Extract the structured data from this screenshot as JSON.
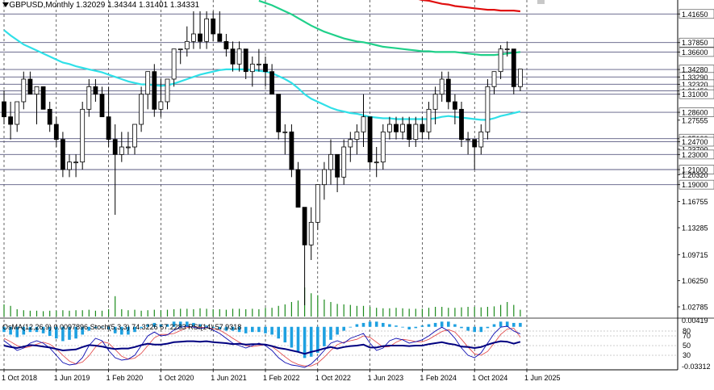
{
  "header": {
    "symbol_line": "GBPUSD,Monthly  1.32029 1.34344 1.31401 1.34331",
    "indicator_line": "OsMA(12,26,9) 0.0097896  Stoch(5,3,3) 74.3226 67.2283  RSI(14) 57.9318"
  },
  "colors": {
    "bull": "#000000",
    "bear": "#000000",
    "ema200": "#e01010",
    "ema144": "#20d08a",
    "ema50": "#30e0e8",
    "volume": "#1b8a1b",
    "osma": "#1ea0e0",
    "stoch_main": "#0a0ab0",
    "stoch_signal": "#e04040",
    "rsi": "#000080",
    "level_line": "#5a5a80"
  },
  "chart_data": {
    "type": "candlestick",
    "title": "GBPUSD,Monthly",
    "ohlc_line": "1.32029 1.34344 1.31401 1.34331",
    "price_axis": {
      "ylim": [
        1.015,
        1.435
      ],
      "ticks": [
        "1.41650",
        "1.37850",
        "1.36600",
        "1.34280",
        "1.33290",
        "1.32320",
        "1.31450",
        "1.31000",
        "1.28600",
        "1.27555",
        "1.25100",
        "1.24700",
        "1.23700",
        "1.23000",
        "1.21000",
        "1.20320",
        "1.19000",
        "1.16755",
        "1.13285",
        "1.09715",
        "1.06250",
        "1.02785"
      ],
      "tick_values": [
        1.4165,
        1.3785,
        1.366,
        1.3428,
        1.3329,
        1.3232,
        1.3145,
        1.31,
        1.286,
        1.27555,
        1.251,
        1.247,
        1.237,
        1.23,
        1.21,
        1.2032,
        1.19,
        1.16755,
        1.13285,
        1.09715,
        1.0625,
        1.02785
      ]
    },
    "levels": [
      1.4165,
      1.3785,
      1.366,
      1.3428,
      1.3329,
      1.3232,
      1.3145,
      1.31,
      1.286,
      1.251,
      1.247,
      1.23,
      1.21,
      1.19
    ],
    "x_labels": [
      "1 Oct 2018",
      "1 Jun 2019",
      "1 Feb 2020",
      "1 Oct 2020",
      "1 Jun 2021",
      "1 Feb 2022",
      "1 Oct 2022",
      "1 Jun 2023",
      "1 Feb 2024",
      "1 Oct 2024",
      "1 Jun 2025"
    ],
    "x_label_index": [
      0,
      8,
      16,
      24,
      32,
      40,
      48,
      56,
      64,
      72,
      80
    ],
    "candles": [
      [
        1.3,
        1.315,
        1.27,
        1.28
      ],
      [
        1.28,
        1.3,
        1.25,
        1.27
      ],
      [
        1.27,
        1.3,
        1.26,
        1.3
      ],
      [
        1.3,
        1.34,
        1.29,
        1.33
      ],
      [
        1.33,
        1.34,
        1.31,
        1.31
      ],
      [
        1.31,
        1.32,
        1.27,
        1.32
      ],
      [
        1.32,
        1.32,
        1.29,
        1.29
      ],
      [
        1.29,
        1.3,
        1.26,
        1.27
      ],
      [
        1.27,
        1.28,
        1.24,
        1.25
      ],
      [
        1.25,
        1.26,
        1.2,
        1.21
      ],
      [
        1.21,
        1.23,
        1.2,
        1.22
      ],
      [
        1.22,
        1.23,
        1.2,
        1.22
      ],
      [
        1.22,
        1.3,
        1.21,
        1.29
      ],
      [
        1.29,
        1.33,
        1.28,
        1.32
      ],
      [
        1.32,
        1.33,
        1.3,
        1.31
      ],
      [
        1.31,
        1.32,
        1.28,
        1.28
      ],
      [
        1.28,
        1.32,
        1.24,
        1.25
      ],
      [
        1.25,
        1.27,
        1.15,
        1.23
      ],
      [
        1.23,
        1.26,
        1.22,
        1.24
      ],
      [
        1.24,
        1.26,
        1.23,
        1.24
      ],
      [
        1.24,
        1.27,
        1.23,
        1.27
      ],
      [
        1.27,
        1.32,
        1.26,
        1.31
      ],
      [
        1.31,
        1.34,
        1.29,
        1.34
      ],
      [
        1.34,
        1.35,
        1.28,
        1.29
      ],
      [
        1.29,
        1.33,
        1.28,
        1.3
      ],
      [
        1.3,
        1.33,
        1.29,
        1.33
      ],
      [
        1.33,
        1.37,
        1.32,
        1.37
      ],
      [
        1.37,
        1.37,
        1.35,
        1.37
      ],
      [
        1.37,
        1.4,
        1.36,
        1.38
      ],
      [
        1.38,
        1.42,
        1.37,
        1.39
      ],
      [
        1.39,
        1.42,
        1.37,
        1.38
      ],
      [
        1.38,
        1.42,
        1.37,
        1.41
      ],
      [
        1.41,
        1.42,
        1.38,
        1.39
      ],
      [
        1.39,
        1.42,
        1.38,
        1.38
      ],
      [
        1.38,
        1.39,
        1.36,
        1.37
      ],
      [
        1.37,
        1.38,
        1.34,
        1.35
      ],
      [
        1.35,
        1.38,
        1.34,
        1.37
      ],
      [
        1.37,
        1.37,
        1.33,
        1.34
      ],
      [
        1.34,
        1.36,
        1.32,
        1.35
      ],
      [
        1.35,
        1.37,
        1.34,
        1.35
      ],
      [
        1.35,
        1.36,
        1.32,
        1.34
      ],
      [
        1.34,
        1.35,
        1.31,
        1.31
      ],
      [
        1.31,
        1.31,
        1.25,
        1.26
      ],
      [
        1.26,
        1.27,
        1.23,
        1.26
      ],
      [
        1.26,
        1.27,
        1.2,
        1.21
      ],
      [
        1.21,
        1.22,
        1.16,
        1.16
      ],
      [
        1.16,
        1.16,
        1.03,
        1.11
      ],
      [
        1.11,
        1.16,
        1.09,
        1.14
      ],
      [
        1.14,
        1.19,
        1.13,
        1.19
      ],
      [
        1.19,
        1.22,
        1.17,
        1.21
      ],
      [
        1.21,
        1.25,
        1.19,
        1.23
      ],
      [
        1.23,
        1.23,
        1.18,
        1.2
      ],
      [
        1.2,
        1.25,
        1.19,
        1.24
      ],
      [
        1.24,
        1.26,
        1.22,
        1.25
      ],
      [
        1.25,
        1.27,
        1.23,
        1.26
      ],
      [
        1.26,
        1.31,
        1.24,
        1.28
      ],
      [
        1.28,
        1.28,
        1.21,
        1.22
      ],
      [
        1.22,
        1.24,
        1.2,
        1.22
      ],
      [
        1.22,
        1.27,
        1.21,
        1.26
      ],
      [
        1.26,
        1.28,
        1.25,
        1.27
      ],
      [
        1.27,
        1.28,
        1.25,
        1.26
      ],
      [
        1.26,
        1.28,
        1.25,
        1.27
      ],
      [
        1.27,
        1.28,
        1.24,
        1.25
      ],
      [
        1.25,
        1.28,
        1.24,
        1.27
      ],
      [
        1.27,
        1.28,
        1.25,
        1.26
      ],
      [
        1.26,
        1.3,
        1.25,
        1.29
      ],
      [
        1.29,
        1.32,
        1.27,
        1.31
      ],
      [
        1.31,
        1.34,
        1.3,
        1.33
      ],
      [
        1.33,
        1.34,
        1.29,
        1.3
      ],
      [
        1.3,
        1.31,
        1.27,
        1.29
      ],
      [
        1.29,
        1.3,
        1.24,
        1.25
      ],
      [
        1.25,
        1.26,
        1.23,
        1.25
      ],
      [
        1.25,
        1.25,
        1.21,
        1.24
      ],
      [
        1.24,
        1.27,
        1.23,
        1.26
      ],
      [
        1.26,
        1.33,
        1.25,
        1.32
      ],
      [
        1.32,
        1.34,
        1.31,
        1.34
      ],
      [
        1.34,
        1.375,
        1.33,
        1.37
      ],
      [
        1.37,
        1.38,
        1.36,
        1.37
      ],
      [
        1.37,
        1.37,
        1.31,
        1.32
      ],
      [
        1.32,
        1.34344,
        1.31401,
        1.34331
      ]
    ],
    "ema50": [
      1.395,
      1.388,
      1.382,
      1.376,
      1.372,
      1.368,
      1.364,
      1.36,
      1.356,
      1.352,
      1.35,
      1.347,
      1.345,
      1.343,
      1.341,
      1.339,
      1.336,
      1.333,
      1.33,
      1.327,
      1.325,
      1.323,
      1.323,
      1.322,
      1.321,
      1.322,
      1.324,
      1.327,
      1.33,
      1.333,
      1.336,
      1.338,
      1.34,
      1.342,
      1.343,
      1.343,
      1.343,
      1.343,
      1.342,
      1.341,
      1.34,
      1.338,
      1.334,
      1.33,
      1.325,
      1.318,
      1.31,
      1.304,
      1.3,
      1.296,
      1.292,
      1.289,
      1.287,
      1.285,
      1.284,
      1.282,
      1.28,
      1.279,
      1.278,
      1.278,
      1.277,
      1.277,
      1.277,
      1.277,
      1.277,
      1.277,
      1.278,
      1.28,
      1.281,
      1.28,
      1.279,
      1.278,
      1.277,
      1.276,
      1.276,
      1.278,
      1.281,
      1.283,
      1.285,
      1.287
    ],
    "ema144": [
      null,
      null,
      null,
      null,
      null,
      null,
      null,
      null,
      null,
      null,
      null,
      null,
      null,
      null,
      null,
      null,
      null,
      null,
      null,
      null,
      null,
      null,
      null,
      null,
      null,
      null,
      null,
      null,
      null,
      null,
      null,
      null,
      null,
      null,
      null,
      null,
      null,
      null,
      null,
      1.434,
      1.431,
      1.428,
      1.424,
      1.42,
      1.416,
      1.411,
      1.406,
      1.401,
      1.397,
      1.393,
      1.39,
      1.387,
      1.384,
      1.382,
      1.38,
      1.379,
      1.377,
      1.375,
      1.373,
      1.372,
      1.371,
      1.37,
      1.369,
      1.368,
      1.367,
      1.367,
      1.366,
      1.366,
      1.366,
      1.366,
      1.365,
      1.364,
      1.363,
      1.362,
      1.362,
      1.362,
      1.363,
      1.364,
      1.365,
      1.366
    ],
    "ema200": [
      null,
      null,
      null,
      null,
      null,
      null,
      null,
      null,
      null,
      null,
      null,
      null,
      null,
      null,
      null,
      null,
      null,
      null,
      null,
      null,
      null,
      null,
      null,
      null,
      null,
      null,
      null,
      null,
      null,
      null,
      null,
      null,
      null,
      null,
      null,
      null,
      null,
      null,
      null,
      null,
      null,
      null,
      null,
      null,
      null,
      null,
      null,
      null,
      null,
      null,
      null,
      null,
      null,
      null,
      null,
      null,
      null,
      null,
      null,
      null,
      null,
      null,
      1.439,
      1.437,
      1.435,
      1.434,
      1.432,
      1.43,
      1.429,
      1.427,
      1.426,
      1.425,
      1.424,
      1.423,
      1.422,
      1.422,
      1.421,
      1.421,
      1.421,
      1.42
    ],
    "volume": [
      0.25,
      0.22,
      0.15,
      0.13,
      0.12,
      0.12,
      0.11,
      0.12,
      0.12,
      0.13,
      0.12,
      0.13,
      0.13,
      0.14,
      0.12,
      0.12,
      0.15,
      0.42,
      0.15,
      0.13,
      0.14,
      0.12,
      0.13,
      0.14,
      0.13,
      0.14,
      0.15,
      0.16,
      0.16,
      0.15,
      0.17,
      0.16,
      0.15,
      0.15,
      0.14,
      0.16,
      0.16,
      0.15,
      0.16,
      0.15,
      0.18,
      0.18,
      0.22,
      0.25,
      0.3,
      0.33,
      0.6,
      0.48,
      0.44,
      0.35,
      0.3,
      0.26,
      0.25,
      0.24,
      0.22,
      0.22,
      0.2,
      0.18,
      0.17,
      0.17,
      0.18,
      0.17,
      0.16,
      0.16,
      0.16,
      0.18,
      0.2,
      0.2,
      0.18,
      0.18,
      0.19,
      0.2,
      0.2,
      0.19,
      0.2,
      0.21,
      0.24,
      0.3,
      0.24,
      0.14
    ],
    "indicator": {
      "levels": [
        "80",
        "70",
        "50",
        "30"
      ],
      "axis_values": [
        "0.00419",
        "-0.03312"
      ],
      "axis_ylim": [
        -0.0331,
        0.0042
      ],
      "osma": [
        -0.004,
        -0.006,
        -0.008,
        -0.006,
        -0.004,
        -0.004,
        -0.005,
        -0.007,
        -0.009,
        -0.011,
        -0.01,
        -0.009,
        -0.006,
        -0.003,
        -0.001,
        0.0,
        -0.002,
        -0.005,
        -0.006,
        -0.006,
        -0.004,
        -0.001,
        0.002,
        0.003,
        0.002,
        0.002,
        0.004,
        0.004,
        0.004,
        0.003,
        0.002,
        0.001,
        -0.001,
        -0.002,
        -0.003,
        -0.003,
        -0.004,
        -0.005,
        -0.004,
        -0.004,
        -0.005,
        -0.006,
        -0.009,
        -0.012,
        -0.016,
        -0.019,
        -0.024,
        -0.023,
        -0.02,
        -0.015,
        -0.01,
        -0.006,
        -0.003,
        0.0,
        0.002,
        0.003,
        0.004,
        0.004,
        0.003,
        0.002,
        0.001,
        0.0,
        -0.002,
        -0.001,
        0.001,
        0.002,
        0.003,
        0.004,
        0.004,
        0.002,
        -0.001,
        -0.003,
        -0.004,
        -0.004,
        -0.001,
        0.002,
        0.004,
        0.004,
        0.003,
        0.003
      ],
      "stoch_main": [
        60,
        50,
        40,
        45,
        55,
        60,
        55,
        45,
        30,
        15,
        10,
        12,
        25,
        50,
        65,
        60,
        40,
        25,
        20,
        22,
        30,
        50,
        70,
        78,
        70,
        72,
        82,
        88,
        90,
        88,
        85,
        88,
        82,
        75,
        65,
        55,
        50,
        45,
        50,
        55,
        50,
        40,
        25,
        15,
        10,
        8,
        5,
        12,
        25,
        40,
        55,
        60,
        55,
        65,
        70,
        75,
        55,
        40,
        45,
        60,
        65,
        62,
        55,
        58,
        62,
        70,
        80,
        88,
        80,
        65,
        45,
        30,
        25,
        35,
        55,
        75,
        88,
        90,
        80,
        74.3
      ],
      "stoch_signal": [
        65,
        58,
        50,
        45,
        48,
        53,
        57,
        53,
        43,
        30,
        18,
        12,
        16,
        29,
        47,
        58,
        55,
        42,
        28,
        22,
        24,
        34,
        50,
        66,
        73,
        73,
        75,
        81,
        87,
        89,
        88,
        87,
        85,
        82,
        74,
        65,
        57,
        50,
        48,
        50,
        52,
        48,
        38,
        27,
        17,
        11,
        8,
        8,
        14,
        26,
        40,
        52,
        57,
        60,
        63,
        70,
        67,
        57,
        47,
        48,
        57,
        63,
        61,
        58,
        58,
        63,
        71,
        79,
        83,
        78,
        63,
        47,
        33,
        30,
        38,
        55,
        73,
        84,
        86,
        67.2
      ],
      "rsi": [
        50,
        47,
        45,
        48,
        51,
        50,
        48,
        46,
        43,
        40,
        41,
        42,
        47,
        51,
        50,
        48,
        45,
        43,
        44,
        44,
        47,
        51,
        54,
        52,
        52,
        54,
        57,
        58,
        59,
        59,
        58,
        59,
        57,
        56,
        55,
        53,
        54,
        52,
        53,
        53,
        52,
        49,
        45,
        43,
        40,
        37,
        33,
        37,
        40,
        44,
        47,
        44,
        47,
        49,
        50,
        52,
        46,
        46,
        49,
        50,
        50,
        50,
        49,
        50,
        50,
        53,
        55,
        57,
        54,
        52,
        48,
        47,
        45,
        47,
        52,
        56,
        59,
        58,
        54,
        57.9
      ]
    }
  }
}
